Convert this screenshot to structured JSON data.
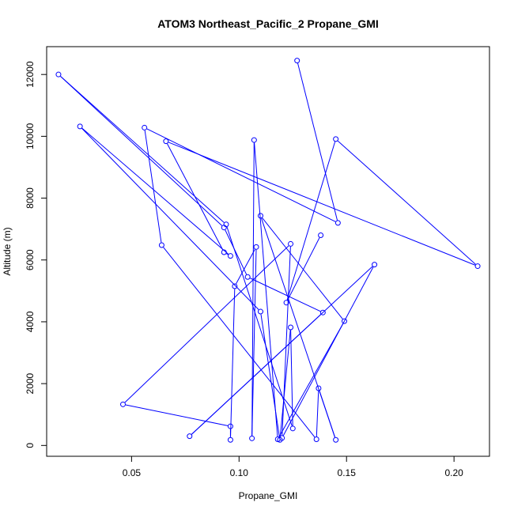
{
  "chart_data": {
    "type": "line",
    "title": "ATOM3 Northeast_Pacific_2 Propane_GMI",
    "xlabel": "Propane_GMI",
    "ylabel": "Altitude (m)",
    "xlim": [
      0.0105,
      0.2165
    ],
    "ylim": [
      -350,
      12900
    ],
    "xticks": [
      0.05,
      0.1,
      0.15,
      0.2
    ],
    "xtick_labels": [
      "0.05",
      "0.10",
      "0.15",
      "0.20"
    ],
    "yticks": [
      0,
      2000,
      4000,
      6000,
      8000,
      10000,
      12000
    ],
    "ytick_labels": [
      "0",
      "2000",
      "4000",
      "6000",
      "8000",
      "10000",
      "12000"
    ],
    "grid": false,
    "color": "#0000ff",
    "series": [
      {
        "points": [
          [
            0.127,
            12450
          ],
          [
            0.146,
            7200
          ],
          [
            0.056,
            10280
          ],
          [
            0.064,
            6480
          ],
          [
            0.136,
            200
          ],
          [
            0.137,
            1850
          ],
          [
            0.145,
            180
          ],
          [
            0.11,
            7430
          ],
          [
            0.149,
            4020
          ],
          [
            0.118,
            200
          ],
          [
            0.107,
            9880
          ],
          [
            0.106,
            230
          ],
          [
            0.108,
            6420
          ],
          [
            0.098,
            5150
          ],
          [
            0.096,
            180
          ],
          [
            0.096,
            620
          ],
          [
            0.046,
            1330
          ],
          [
            0.124,
            6520
          ],
          [
            0.12,
            240
          ],
          [
            0.163,
            5850
          ],
          [
            0.077,
            300
          ],
          [
            0.139,
            4300
          ],
          [
            0.104,
            5450
          ],
          [
            0.093,
            7050
          ],
          [
            0.016,
            12000
          ],
          [
            0.094,
            7150
          ],
          [
            0.125,
            550
          ],
          [
            0.124,
            3820
          ],
          [
            0.119,
            180
          ],
          [
            0.11,
            4330
          ],
          [
            0.026,
            10320
          ],
          [
            0.096,
            6130
          ],
          [
            0.093,
            6250
          ],
          [
            0.066,
            9840
          ],
          [
            0.211,
            5800
          ],
          [
            0.145,
            9910
          ],
          [
            0.122,
            4620
          ],
          [
            0.138,
            6800
          ]
        ]
      }
    ]
  }
}
